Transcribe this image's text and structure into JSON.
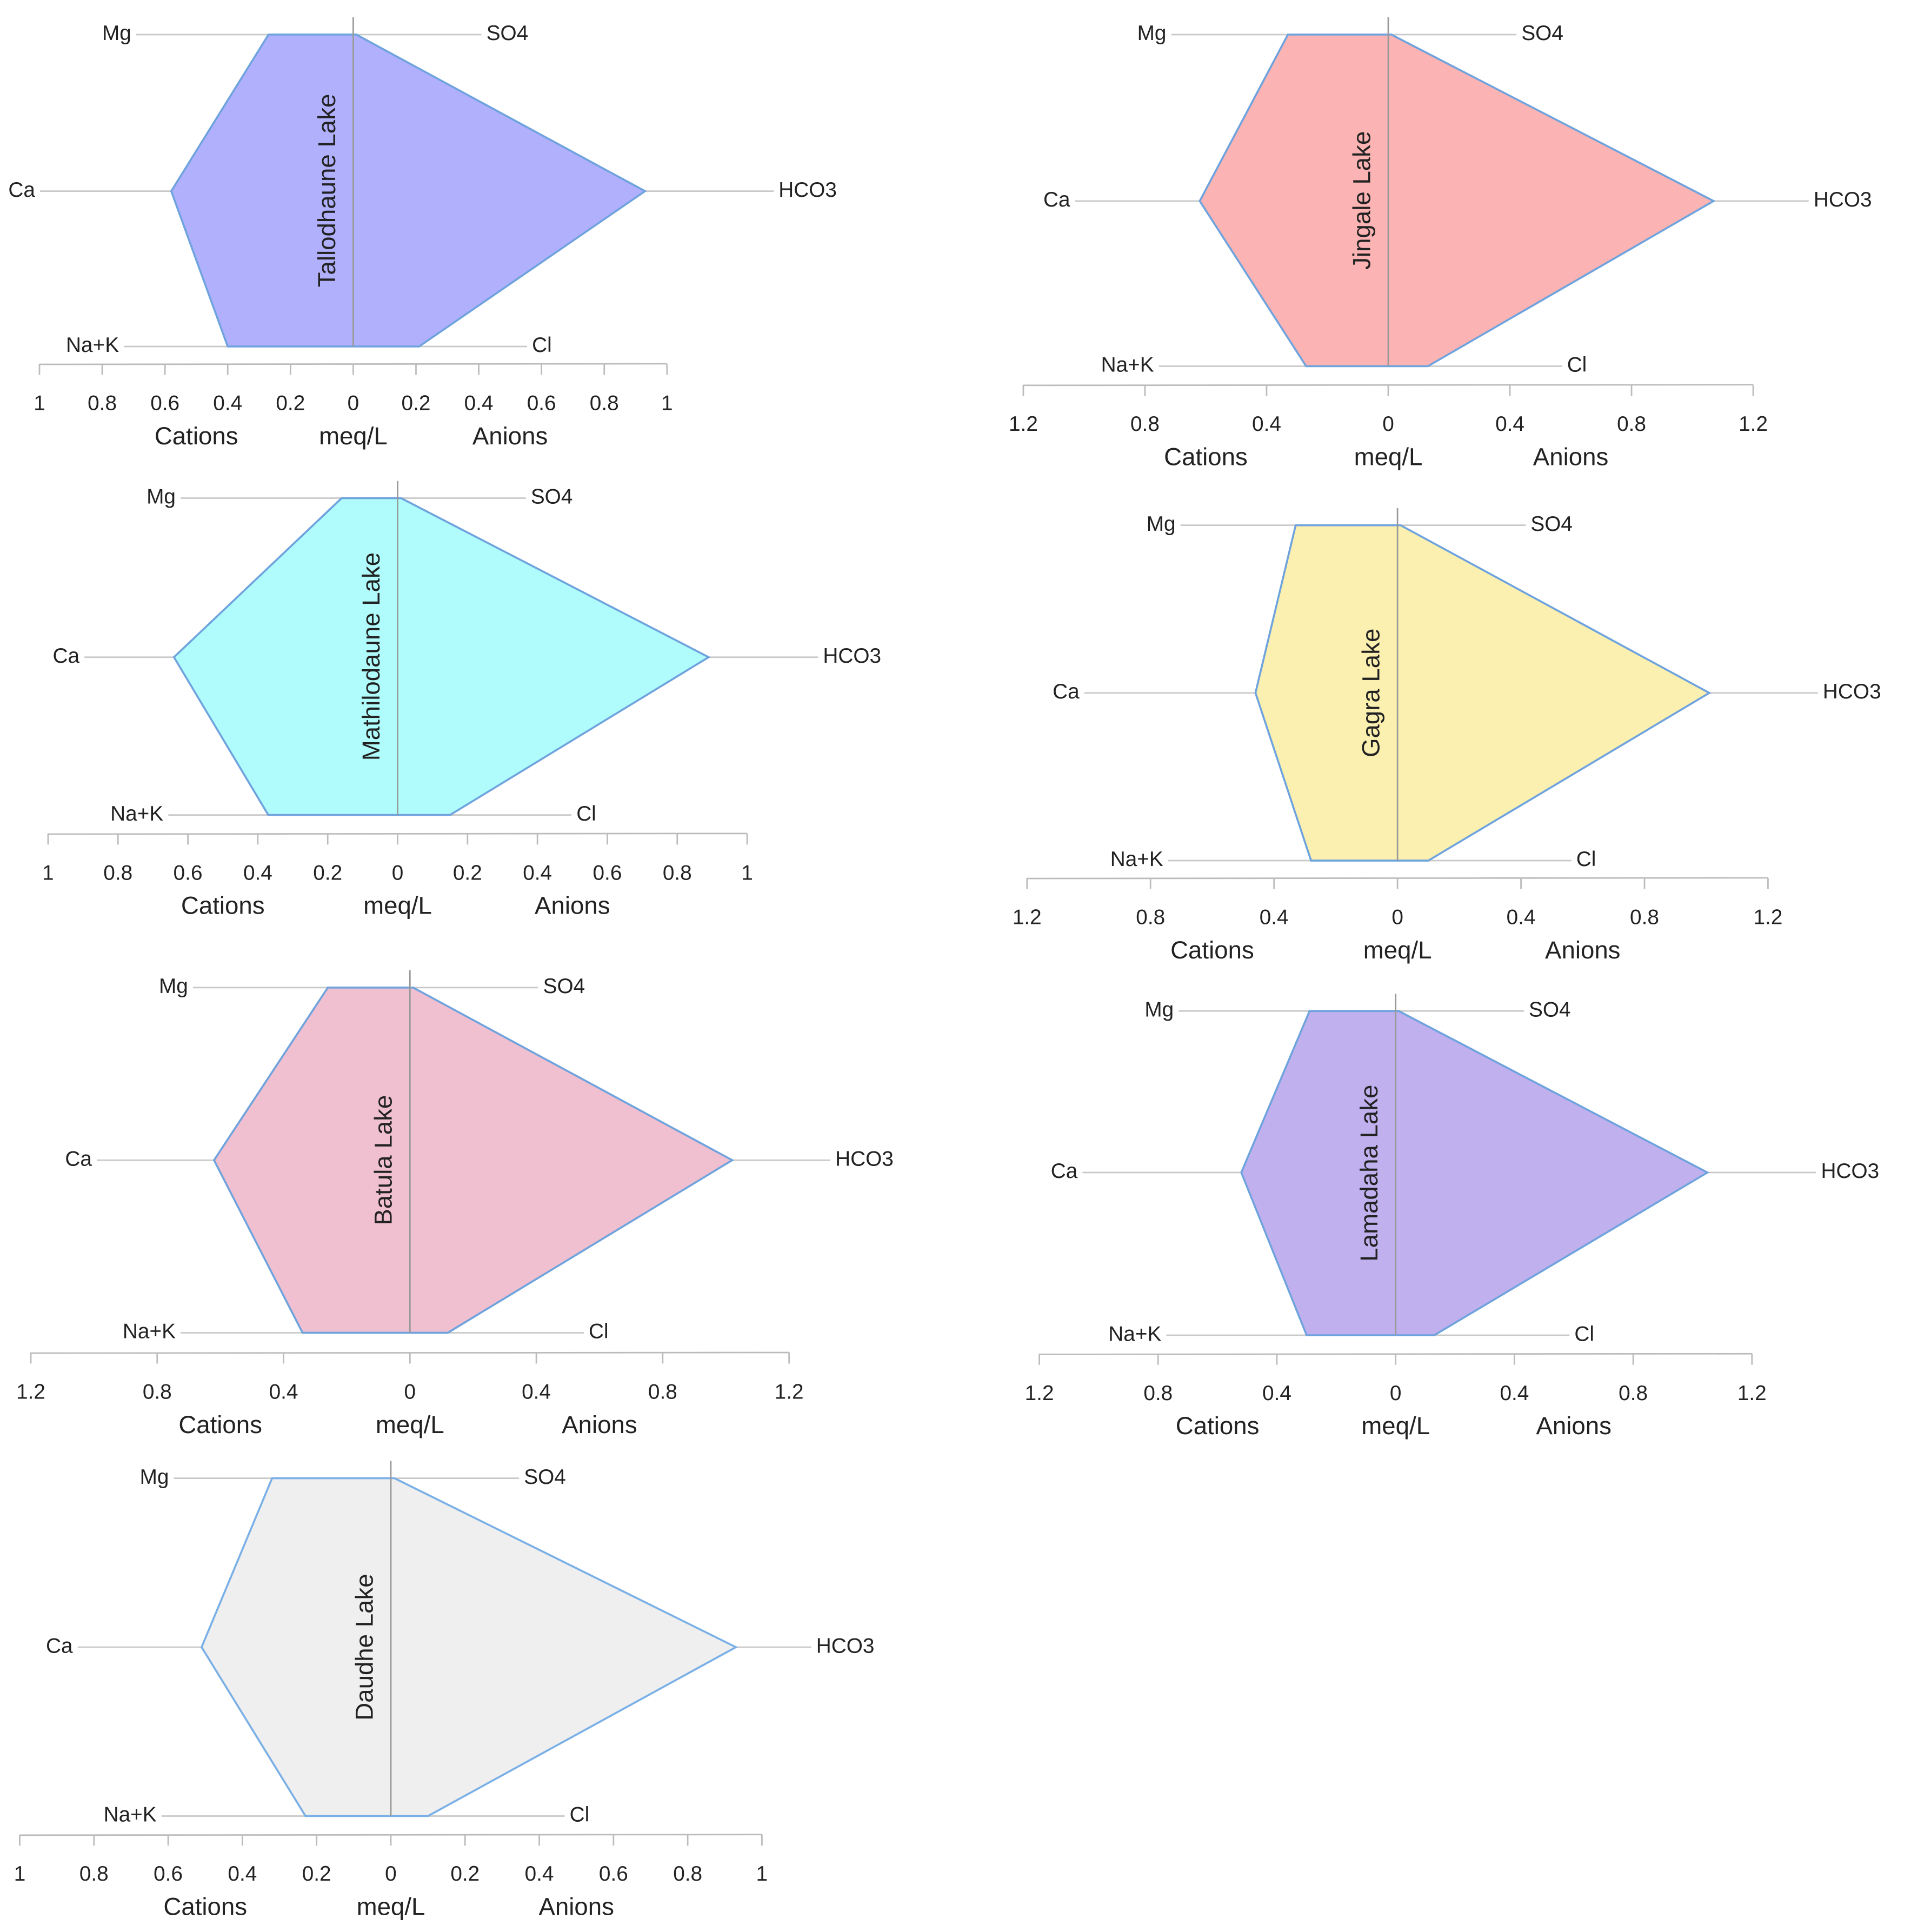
{
  "chart_data": [
    {
      "type": "stiff",
      "title": "Tallodhaune Lake",
      "cations": [
        "Mg",
        "Ca",
        "Na+K"
      ],
      "anions": [
        "SO4",
        "HCO3",
        "Cl"
      ],
      "cation_values": [
        0.27,
        0.58,
        0.4
      ],
      "anion_values": [
        0.01,
        0.93,
        0.21
      ],
      "xlim": [
        -1,
        1
      ],
      "xticks": [
        {
          "value": -1,
          "label": "1"
        },
        {
          "value": -0.8,
          "label": "0.8"
        },
        {
          "value": -0.6,
          "label": "0.6"
        },
        {
          "value": -0.4,
          "label": "0.4"
        },
        {
          "value": -0.2,
          "label": "0.2"
        },
        0,
        0.2,
        0.4,
        0.6,
        0.8,
        1
      ],
      "xlabel_left": "Cations",
      "xlabel": "meq/L",
      "xlabel_right": "Anions",
      "color": "#b0b0fd",
      "edge_color": "#6fa3dd",
      "title_color": "#2a2a9a"
    },
    {
      "type": "stiff",
      "title": "Jingale Lake",
      "cations": [
        "Mg",
        "Ca",
        "Na+K"
      ],
      "anions": [
        "SO4",
        "HCO3",
        "Cl"
      ],
      "cation_values": [
        0.33,
        0.62,
        0.27
      ],
      "anion_values": [
        0.01,
        1.07,
        0.13
      ],
      "xlim": [
        -1.2,
        1.2
      ],
      "xticks": [
        {
          "value": -1.2,
          "label": "1.2"
        },
        {
          "value": -0.8,
          "label": "0.8"
        },
        {
          "value": -0.4,
          "label": "0.4"
        },
        0,
        0.4,
        0.8,
        1.2
      ],
      "xlabel_left": "Cations",
      "xlabel": "meq/L",
      "xlabel_right": "Anions",
      "color": "#fbb3b3",
      "edge_color": "#6fa3dd",
      "title_color": "#5a1010"
    },
    {
      "type": "stiff",
      "title": "Mathilodaune Lake",
      "cations": [
        "Mg",
        "Ca",
        "Na+K"
      ],
      "anions": [
        "SO4",
        "HCO3",
        "Cl"
      ],
      "cation_values": [
        0.16,
        0.64,
        0.37
      ],
      "anion_values": [
        0.01,
        0.89,
        0.15
      ],
      "xlim": [
        -1,
        1
      ],
      "xticks": [
        {
          "value": -1,
          "label": "1"
        },
        {
          "value": -0.8,
          "label": "0.8"
        },
        {
          "value": -0.6,
          "label": "0.6"
        },
        {
          "value": -0.4,
          "label": "0.4"
        },
        {
          "value": -0.2,
          "label": "0.2"
        },
        0,
        0.2,
        0.4,
        0.6,
        0.8,
        1
      ],
      "xlabel_left": "Cations",
      "xlabel": "meq/L",
      "xlabel_right": "Anions",
      "color": "#b0fcfc",
      "edge_color": "#6fa3dd",
      "title_color": "#0a5a5a"
    },
    {
      "type": "stiff",
      "title": "Gagra Lake",
      "cations": [
        "Mg",
        "Ca",
        "Na+K"
      ],
      "anions": [
        "SO4",
        "HCO3",
        "Cl"
      ],
      "cation_values": [
        0.33,
        0.46,
        0.28
      ],
      "anion_values": [
        0.01,
        1.01,
        0.1
      ],
      "xlim": [
        -1.2,
        1.2
      ],
      "xticks": [
        {
          "value": -1.2,
          "label": "1.2"
        },
        {
          "value": -0.8,
          "label": "0.8"
        },
        {
          "value": -0.4,
          "label": "0.4"
        },
        0,
        0.4,
        0.8,
        1.2
      ],
      "xlabel_left": "Cations",
      "xlabel": "meq/L",
      "xlabel_right": "Anions",
      "color": "#fbf0b0",
      "edge_color": "#6fa3dd",
      "title_color": "#5a5010"
    },
    {
      "type": "stiff",
      "title": "Batula Lake",
      "cations": [
        "Mg",
        "Ca",
        "Na+K"
      ],
      "anions": [
        "SO4",
        "HCO3",
        "Cl"
      ],
      "cation_values": [
        0.26,
        0.62,
        0.34
      ],
      "anion_values": [
        0.01,
        1.02,
        0.12
      ],
      "xlim": [
        -1.2,
        1.2
      ],
      "xticks": [
        {
          "value": -1.2,
          "label": "1.2"
        },
        {
          "value": -0.8,
          "label": "0.8"
        },
        {
          "value": -0.4,
          "label": "0.4"
        },
        0,
        0.4,
        0.8,
        1.2
      ],
      "xlabel_left": "Cations",
      "xlabel": "meq/L",
      "xlabel_right": "Anions",
      "color": "#f0c0d0",
      "edge_color": "#6fa3dd",
      "title_color": "#5a1030"
    },
    {
      "type": "stiff",
      "title": "Lamadaha Lake",
      "cations": [
        "Mg",
        "Ca",
        "Na+K"
      ],
      "anions": [
        "SO4",
        "HCO3",
        "Cl"
      ],
      "cation_values": [
        0.29,
        0.52,
        0.3
      ],
      "anion_values": [
        0.01,
        1.05,
        0.13
      ],
      "xlim": [
        -1.2,
        1.2
      ],
      "xticks": [
        {
          "value": -1.2,
          "label": "1.2"
        },
        {
          "value": -0.8,
          "label": "0.8"
        },
        {
          "value": -0.4,
          "label": "0.4"
        },
        0,
        0.4,
        0.8,
        1.2
      ],
      "xlabel_left": "Cations",
      "xlabel": "meq/L",
      "xlabel_right": "Anions",
      "color": "#c0b0ee",
      "edge_color": "#6fa3dd",
      "title_color": "#2a1a6a"
    },
    {
      "type": "stiff",
      "title": "Daudhe Lake",
      "cations": [
        "Mg",
        "Ca",
        "Na+K"
      ],
      "anions": [
        "SO4",
        "HCO3",
        "Cl"
      ],
      "cation_values": [
        0.32,
        0.51,
        0.23
      ],
      "anion_values": [
        0.01,
        0.93,
        0.1
      ],
      "xlim": [
        -1,
        1
      ],
      "xticks": [
        {
          "value": -1,
          "label": "1"
        },
        {
          "value": -0.8,
          "label": "0.8"
        },
        {
          "value": -0.6,
          "label": "0.6"
        },
        {
          "value": -0.4,
          "label": "0.4"
        },
        {
          "value": -0.2,
          "label": "0.2"
        },
        0,
        0.2,
        0.4,
        0.6,
        0.8,
        1
      ],
      "xlabel_left": "Cations",
      "xlabel": "meq/L",
      "xlabel_right": "Anions",
      "color": "#efefef",
      "edge_color": "#7ab0e6",
      "title_color": "#555555"
    }
  ]
}
